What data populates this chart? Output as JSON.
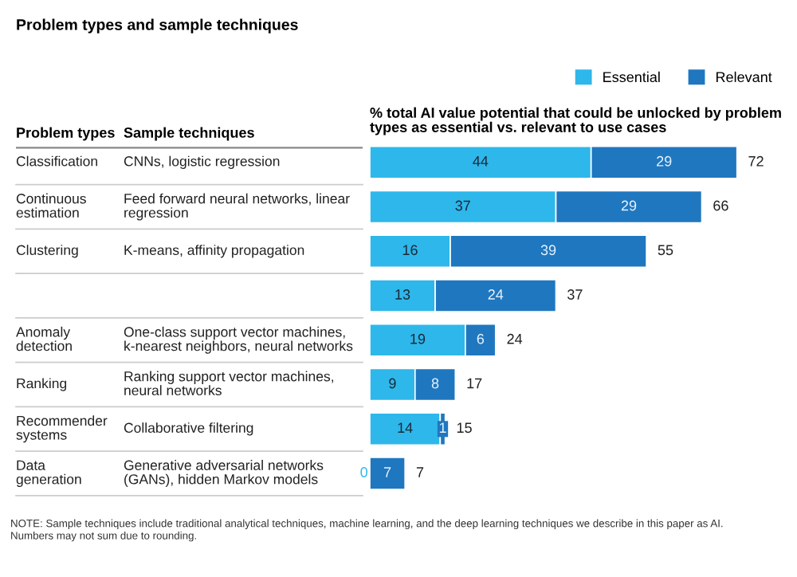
{
  "chart_data": {
    "type": "bar",
    "orientation": "horizontal",
    "stacked": true,
    "title": "Problem types and sample techniques",
    "ylabel": "Problem types",
    "xlabel": "% total AI value potential that could be unlocked by problem types as essential vs. relevant to use cases",
    "categories": [
      "Classification",
      "Continuous estimation",
      "Clustering",
      null,
      "Anomaly detection",
      "Ranking",
      "Recommender systems",
      "Data generation"
    ],
    "series": [
      {
        "name": "Essential",
        "color": "#2eb7ea",
        "values": [
          44,
          37,
          16,
          13,
          19,
          9,
          14,
          0
        ]
      },
      {
        "name": "Relevant",
        "color": "#1f77c0",
        "values": [
          29,
          29,
          39,
          24,
          6,
          8,
          1,
          7
        ]
      }
    ],
    "totals": [
      "72",
      "66",
      "55",
      "37",
      "24",
      "17",
      "15",
      "7"
    ],
    "data_labels": true,
    "legend": "top right",
    "tick_labels": false,
    "annotations": [
      "Sample techniques",
      "CNNs, logistic regression",
      "Feed forward neural networks, linear regression",
      "K-means, affinity propagation",
      "One-class support vector machines, k-nearest neighbors, neural networks",
      "Ranking support vector machines, neural networks",
      "Collaborative filtering",
      "Generative adversarial networks (GANs), hidden Markov models",
      "NOTE: Sample techniques include traditional analytical techniques, machine learning, and the deep learning techniques we describe in this paper as AI. Numbers may not sum due to rounding."
    ]
  }
}
